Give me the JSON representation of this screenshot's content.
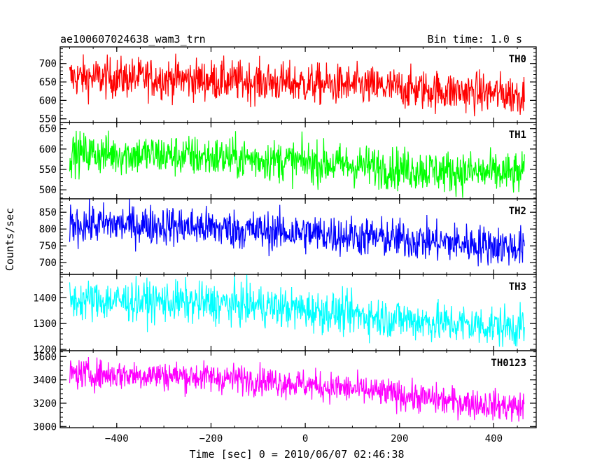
{
  "chart_data": {
    "type": "line",
    "title": "ae100607024638_wam3_trn",
    "subtitle": "Bin time: 1.0 s",
    "xlabel": "Time [sec] 0 = 2010/06/07 02:46:38",
    "ylabel": "Counts/sec",
    "xlim": [
      -520,
      490
    ],
    "x_ticks": [
      "−400",
      "−200",
      "0",
      "200",
      "400"
    ],
    "x_tick_values": [
      -400,
      -200,
      0,
      200,
      400
    ],
    "x_range": [
      -500,
      465
    ],
    "bin_time": 1.0,
    "panels": [
      {
        "name": "TH0",
        "color": "#ff0000",
        "ylim": [
          540,
          745
        ],
        "y_ticks": [
          "550",
          "600",
          "650",
          "700"
        ],
        "y_tick_values": [
          550,
          600,
          650,
          700
        ],
        "trend": [
          [
            -500,
            662
          ],
          [
            -300,
            660
          ],
          [
            -100,
            650
          ],
          [
            100,
            640
          ],
          [
            300,
            625
          ],
          [
            465,
            615
          ]
        ],
        "noise": 28
      },
      {
        "name": "TH1",
        "color": "#00ff00",
        "ylim": [
          478,
          665
        ],
        "y_ticks": [
          "500",
          "550",
          "600",
          "650"
        ],
        "y_tick_values": [
          500,
          550,
          600,
          650
        ],
        "trend": [
          [
            -500,
            590
          ],
          [
            -300,
            585
          ],
          [
            -100,
            575
          ],
          [
            100,
            560
          ],
          [
            300,
            545
          ],
          [
            465,
            538
          ]
        ],
        "noise": 26
      },
      {
        "name": "TH2",
        "color": "#0000ff",
        "ylim": [
          665,
          890
        ],
        "y_ticks": [
          "700",
          "750",
          "800",
          "850"
        ],
        "y_tick_values": [
          700,
          750,
          800,
          850
        ],
        "trend": [
          [
            -500,
            815
          ],
          [
            -300,
            812
          ],
          [
            -100,
            795
          ],
          [
            100,
            780
          ],
          [
            300,
            760
          ],
          [
            465,
            745
          ]
        ],
        "noise": 30
      },
      {
        "name": "TH3",
        "color": "#00ffff",
        "ylim": [
          1195,
          1490
        ],
        "y_ticks": [
          "1200",
          "1300",
          "1400"
        ],
        "y_tick_values": [
          1200,
          1300,
          1400
        ],
        "trend": [
          [
            -500,
            1390
          ],
          [
            -300,
            1385
          ],
          [
            -100,
            1370
          ],
          [
            100,
            1335
          ],
          [
            300,
            1300
          ],
          [
            465,
            1285
          ]
        ],
        "noise": 40
      },
      {
        "name": "TH0123",
        "color": "#ff00ff",
        "ylim": [
          2990,
          3650
        ],
        "y_ticks": [
          "3000",
          "3200",
          "3400",
          "3600"
        ],
        "y_tick_values": [
          3000,
          3200,
          3400,
          3600
        ],
        "trend": [
          [
            -500,
            3450
          ],
          [
            -300,
            3440
          ],
          [
            -100,
            3400
          ],
          [
            100,
            3320
          ],
          [
            300,
            3220
          ],
          [
            465,
            3160
          ]
        ],
        "noise": 65
      }
    ]
  }
}
